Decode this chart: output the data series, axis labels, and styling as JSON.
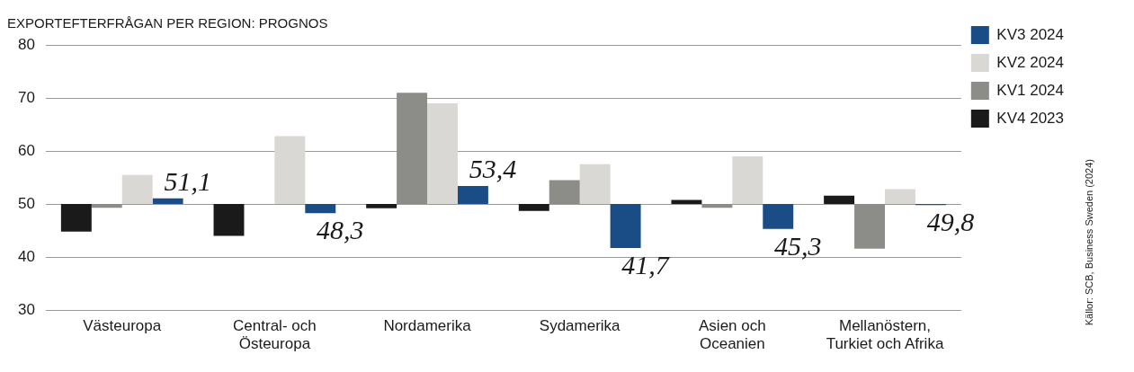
{
  "chart_data": {
    "type": "bar",
    "title": "EXPORTEFTERFRÅGAN PER REGION: PROGNOS",
    "categories": [
      "Västeuropa",
      "Central- och\nÖsteuropa",
      "Nordamerika",
      "Sydamerika",
      "Asien och\nOceanien",
      "Mellanöstern,\nTurkiet och Afrika"
    ],
    "series": [
      {
        "name": "KV4 2023",
        "color": "#1a1a1a",
        "base": [
          50,
          50,
          50,
          50,
          50,
          50
        ],
        "values": [
          -5.2,
          -6,
          -0.8,
          -1.3,
          0.8,
          1.6
        ]
      },
      {
        "name": "KV1 2024",
        "color": "#8c8c88",
        "base": [
          50,
          null,
          50,
          50,
          50,
          50
        ],
        "values": [
          -0.7,
          null,
          21,
          4.5,
          -0.7,
          -8.4
        ]
      },
      {
        "name": "KV2 2024",
        "color": "#d9d8d4",
        "base": [
          50,
          50,
          50,
          50,
          50,
          50
        ],
        "values": [
          5.5,
          12.8,
          19,
          7.5,
          9,
          2.8
        ]
      },
      {
        "name": "KV3 2024",
        "color": "#1a4d85",
        "base": [
          50,
          50,
          50,
          50,
          50,
          50
        ],
        "values": [
          1.1,
          -1.7,
          3.4,
          -8.3,
          -4.7,
          -0.2
        ],
        "value_labels": [
          "51,1",
          "48,3",
          "53,4",
          "41,7",
          "45,3",
          "49,8"
        ]
      }
    ],
    "ylim": [
      30,
      80
    ],
    "yticks": [
      30,
      40,
      50,
      60,
      70,
      80
    ],
    "grid": "y",
    "legend": "top right",
    "annotations": [
      "Källor: SCB, Business Sweden (2024)"
    ]
  }
}
